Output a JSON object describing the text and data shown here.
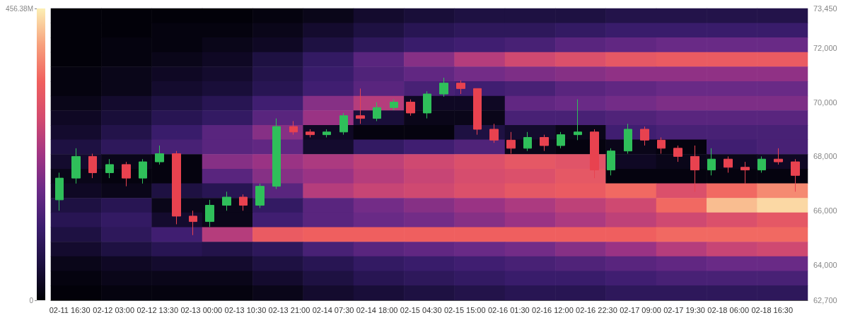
{
  "chart_data": [
    {
      "type": "heatmap",
      "clim": [
        0,
        456.38
      ],
      "cticks": [
        0,
        {
          "value": 456.38,
          "label": "456.38M"
        }
      ],
      "categories": [
        null,
        null,
        null,
        null,
        null,
        null,
        null,
        null,
        null,
        null,
        null,
        null,
        null,
        null,
        null
      ],
      "y_categories": [
        null,
        null,
        null,
        null,
        null,
        null,
        null,
        null,
        null,
        null,
        null,
        null,
        null,
        null,
        null,
        null,
        null,
        null,
        null,
        null
      ],
      "cells": [
        [
          5,
          5,
          5,
          5,
          10,
          20,
          40,
          50,
          60,
          60,
          60,
          70,
          70,
          70,
          70
        ],
        [
          5,
          5,
          10,
          10,
          20,
          40,
          60,
          80,
          90,
          90,
          100,
          110,
          110,
          110,
          110
        ],
        [
          5,
          10,
          10,
          20,
          30,
          60,
          90,
          110,
          120,
          130,
          150,
          160,
          170,
          170,
          170
        ],
        [
          5,
          10,
          20,
          30,
          60,
          100,
          150,
          200,
          250,
          280,
          300,
          320,
          330,
          330,
          330
        ],
        [
          10,
          20,
          30,
          40,
          70,
          110,
          140,
          160,
          180,
          190,
          200,
          210,
          210,
          210,
          210
        ],
        [
          10,
          20,
          40,
          50,
          80,
          120,
          150,
          130,
          120,
          130,
          150,
          160,
          170,
          170,
          170
        ],
        [
          20,
          40,
          60,
          80,
          120,
          200,
          250,
          30,
          30,
          160,
          170,
          180,
          190,
          190,
          190
        ],
        [
          30,
          50,
          80,
          100,
          150,
          220,
          50,
          20,
          20,
          130,
          130,
          140,
          150,
          150,
          150
        ],
        [
          40,
          70,
          110,
          150,
          200,
          30,
          10,
          10,
          60,
          40,
          20,
          120,
          130,
          130,
          130
        ],
        [
          60,
          90,
          130,
          150,
          160,
          40,
          100,
          120,
          140,
          20,
          10,
          20,
          10,
          120,
          130
        ],
        [
          40,
          20,
          10,
          200,
          220,
          240,
          260,
          280,
          300,
          320,
          310,
          30,
          20,
          20,
          30
        ],
        [
          20,
          10,
          10,
          150,
          200,
          220,
          250,
          270,
          290,
          300,
          320,
          10,
          10,
          10,
          10
        ],
        [
          30,
          20,
          60,
          80,
          150,
          250,
          270,
          280,
          300,
          320,
          330,
          350,
          300,
          350,
          380
        ],
        [
          60,
          80,
          20,
          20,
          100,
          150,
          180,
          200,
          220,
          240,
          260,
          280,
          350,
          420,
          440
        ],
        [
          80,
          100,
          40,
          20,
          120,
          150,
          170,
          180,
          200,
          220,
          240,
          260,
          280,
          300,
          320
        ],
        [
          60,
          90,
          120,
          250,
          330,
          340,
          340,
          340,
          340,
          340,
          340,
          340,
          350,
          350,
          350
        ],
        [
          40,
          60,
          80,
          70,
          90,
          130,
          150,
          160,
          170,
          180,
          200,
          220,
          250,
          270,
          280
        ],
        [
          20,
          30,
          40,
          40,
          60,
          80,
          100,
          110,
          120,
          130,
          140,
          150,
          160,
          170,
          170
        ],
        [
          10,
          20,
          20,
          20,
          40,
          60,
          80,
          90,
          100,
          110,
          110,
          120,
          130,
          130,
          130
        ],
        [
          5,
          10,
          10,
          10,
          20,
          40,
          50,
          60,
          70,
          80,
          80,
          90,
          90,
          90,
          90
        ]
      ]
    },
    {
      "type": "candlestick",
      "xlim": [
        "--02-11T12:00",
        "--02-19T01:00"
      ],
      "ylim": [
        62700,
        73450
      ],
      "xticks": [
        {
          "value": "--02-11T16:30",
          "label": "02-11 16:30"
        },
        {
          "value": "--02-12T03:00",
          "label": "02-12 03:00"
        },
        {
          "value": "--02-12T13:30",
          "label": "02-12 13:30"
        },
        {
          "value": "--02-13T00:00",
          "label": "02-13 00:00"
        },
        {
          "value": "--02-13T10:30",
          "label": "02-13 10:30"
        },
        {
          "value": "--02-13T21:00",
          "label": "02-13 21:00"
        },
        {
          "value": "--02-14T07:30",
          "label": "02-14 07:30"
        },
        {
          "value": "--02-14T18:00",
          "label": "02-14 18:00"
        },
        {
          "value": "--02-15T04:30",
          "label": "02-15 04:30"
        },
        {
          "value": "--02-15T15:00",
          "label": "02-15 15:00"
        },
        {
          "value": "--02-16T01:30",
          "label": "02-16 01:30"
        },
        {
          "value": "--02-16T12:00",
          "label": "02-16 12:00"
        },
        {
          "value": "--02-16T22:30",
          "label": "02-16 22:30"
        },
        {
          "value": "--02-17T09:00",
          "label": "02-17 09:00"
        },
        {
          "value": "--02-17T19:30",
          "label": "02-17 19:30"
        },
        {
          "value": "--02-18T06:00",
          "label": "02-18 06:00"
        },
        {
          "value": "--02-18T16:30",
          "label": "02-18 16:30"
        }
      ],
      "yticks": [
        {
          "value": 62700,
          "label": "62,700"
        },
        {
          "value": 64000,
          "label": "64,000"
        },
        {
          "value": 66000,
          "label": "66,000"
        },
        {
          "value": 68000,
          "label": "68,000"
        },
        {
          "value": 70000,
          "label": "70,000"
        },
        {
          "value": 72000,
          "label": "72,000"
        },
        {
          "value": 73450,
          "label": "73,450"
        }
      ],
      "x": [
        "--02-11T14:00",
        "--02-11T18:00",
        "--02-11T22:00",
        "--02-12T02:00",
        "--02-12T06:00",
        "--02-12T10:00",
        "--02-12T14:00",
        "--02-12T18:00",
        "--02-12T22:00",
        "--02-13T02:00",
        "--02-13T06:00",
        "--02-13T10:00",
        "--02-13T14:00",
        "--02-13T18:00",
        "--02-13T22:00",
        "--02-14T02:00",
        "--02-14T06:00",
        "--02-14T10:00",
        "--02-14T14:00",
        "--02-14T18:00",
        "--02-14T22:00",
        "--02-15T02:00",
        "--02-15T06:00",
        "--02-15T10:00",
        "--02-15T14:00",
        "--02-15T18:00",
        "--02-15T22:00",
        "--02-16T02:00",
        "--02-16T06:00",
        "--02-16T10:00",
        "--02-16T14:00",
        "--02-16T18:00",
        "--02-16T22:00",
        "--02-17T02:00",
        "--02-17T06:00",
        "--02-17T10:00",
        "--02-17T14:00",
        "--02-17T18:00",
        "--02-17T22:00",
        "--02-18T02:00",
        "--02-18T06:00",
        "--02-18T10:00",
        "--02-18T14:00",
        "--02-18T18:00",
        "--02-18T22:00"
      ],
      "ohlc": [
        [
          66400,
          67400,
          66000,
          67200
        ],
        [
          67200,
          68300,
          67000,
          68000
        ],
        [
          68000,
          68100,
          67200,
          67400
        ],
        [
          67400,
          67900,
          67200,
          67700
        ],
        [
          67700,
          67800,
          66900,
          67200
        ],
        [
          67200,
          67900,
          67000,
          67800
        ],
        [
          67800,
          68400,
          67700,
          68100
        ],
        [
          68100,
          68200,
          65500,
          65800
        ],
        [
          65800,
          66000,
          65100,
          65600
        ],
        [
          65600,
          66400,
          65400,
          66200
        ],
        [
          66200,
          66700,
          66000,
          66500
        ],
        [
          66500,
          66600,
          66000,
          66200
        ],
        [
          66200,
          67000,
          66100,
          66900
        ],
        [
          66900,
          69400,
          66800,
          69100
        ],
        [
          69100,
          69300,
          68800,
          68900
        ],
        [
          68900,
          69000,
          68700,
          68800
        ],
        [
          68800,
          69000,
          68700,
          68900
        ],
        [
          68900,
          69600,
          68800,
          69500
        ],
        [
          69500,
          70500,
          69200,
          69400
        ],
        [
          69400,
          70000,
          69300,
          69800
        ],
        [
          69800,
          70100,
          69700,
          70000
        ],
        [
          70000,
          70100,
          69500,
          69600
        ],
        [
          69600,
          70400,
          69400,
          70300
        ],
        [
          70300,
          70900,
          70200,
          70700
        ],
        [
          70700,
          70800,
          70300,
          70500
        ],
        [
          70500,
          70500,
          68800,
          69000
        ],
        [
          69000,
          69200,
          68500,
          68600
        ],
        [
          68600,
          68900,
          68100,
          68300
        ],
        [
          68300,
          68900,
          68200,
          68700
        ],
        [
          68700,
          68800,
          68200,
          68400
        ],
        [
          68400,
          68900,
          68300,
          68800
        ],
        [
          68800,
          70100,
          68600,
          68900
        ],
        [
          68900,
          69000,
          67200,
          67500
        ],
        [
          67500,
          68300,
          67300,
          68200
        ],
        [
          68200,
          69200,
          68100,
          69000
        ],
        [
          69000,
          69100,
          68400,
          68600
        ],
        [
          68600,
          68700,
          68100,
          68300
        ],
        [
          68300,
          68400,
          67800,
          68000
        ],
        [
          68000,
          68400,
          66700,
          67500
        ],
        [
          67500,
          68300,
          67300,
          67900
        ],
        [
          67900,
          68000,
          67400,
          67600
        ],
        [
          67600,
          67800,
          67000,
          67500
        ],
        [
          67500,
          68000,
          67400,
          67900
        ],
        [
          67900,
          68300,
          67700,
          67800
        ],
        [
          67800,
          67900,
          66700,
          67300
        ]
      ]
    }
  ]
}
